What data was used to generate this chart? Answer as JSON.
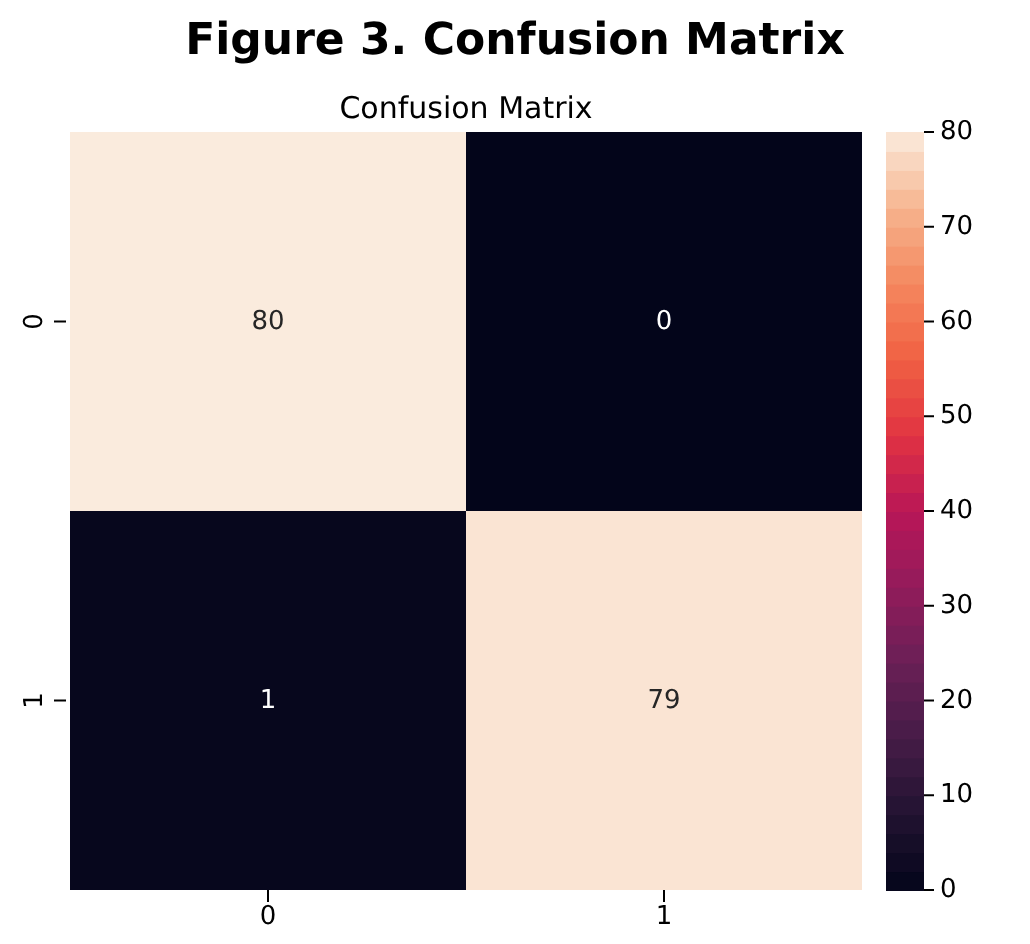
{
  "chart_data": {
    "type": "heatmap",
    "title": "Figure 3. Confusion Matrix",
    "subtitle": "Confusion Matrix",
    "categories": [
      "0",
      "1"
    ],
    "y_categories": [
      "0",
      "1"
    ],
    "cells": [
      [
        80,
        0
      ],
      [
        1,
        79
      ]
    ],
    "clim": [
      0,
      80
    ],
    "cticks": [
      0,
      10,
      20,
      30,
      40,
      50,
      60,
      70,
      80
    ],
    "data_labels": true
  }
}
